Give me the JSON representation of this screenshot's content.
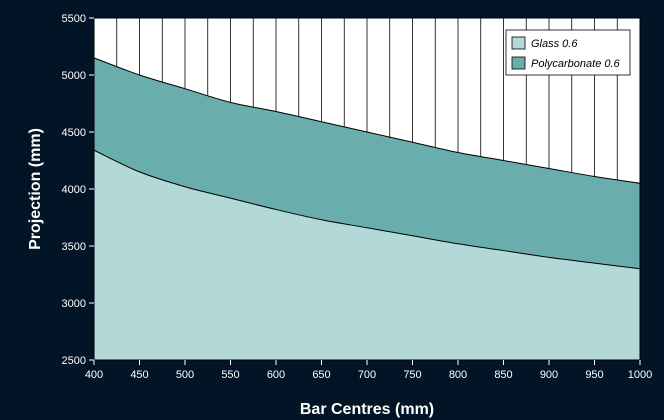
{
  "chart_data": {
    "type": "area",
    "xlabel": "Bar Centres (mm)",
    "ylabel": "Projection (mm)",
    "xlim": [
      400,
      1000
    ],
    "ylim": [
      2500,
      5500
    ],
    "x_ticks": [
      400,
      450,
      500,
      550,
      600,
      650,
      700,
      750,
      800,
      850,
      900,
      950,
      1000
    ],
    "y_ticks": [
      2500,
      3000,
      3500,
      4000,
      4500,
      5000,
      5500
    ],
    "grid": false,
    "legend_position": "top-right",
    "x": [
      400,
      450,
      500,
      550,
      600,
      650,
      700,
      750,
      800,
      850,
      900,
      950,
      1000
    ],
    "series": [
      {
        "name": "Glass 0.6",
        "color": "#b3d8d8",
        "values": [
          4340,
          4150,
          4020,
          3920,
          3820,
          3730,
          3660,
          3590,
          3520,
          3460,
          3400,
          3350,
          3300
        ]
      },
      {
        "name": "Polycarbonate 0.6",
        "color": "#69adad",
        "values": [
          5150,
          5000,
          4880,
          4760,
          4680,
          4590,
          4500,
          4410,
          4320,
          4250,
          4180,
          4110,
          4050
        ]
      }
    ]
  }
}
